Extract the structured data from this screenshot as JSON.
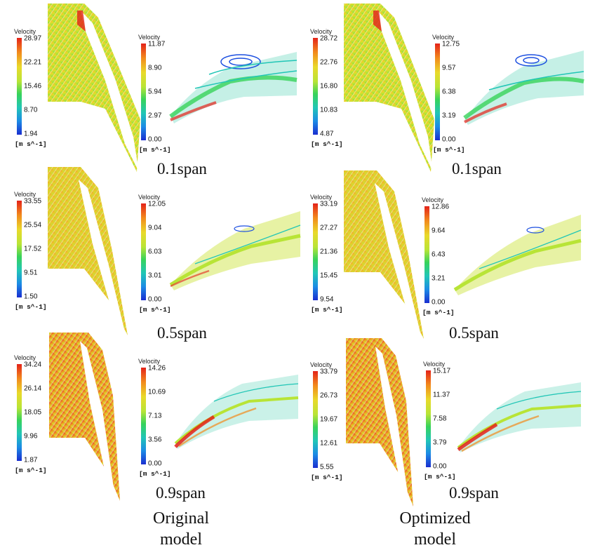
{
  "legend_title": "Velocity",
  "unit": "[m s^-1]",
  "span_labels": [
    "0.1span",
    "0.5span",
    "0.9span"
  ],
  "models": [
    {
      "label_line1": "Original",
      "label_line2": "model",
      "rows": [
        {
          "blade_ticks": [
            "28.97",
            "22.21",
            "15.46",
            "8.70",
            "1.94"
          ],
          "passage_ticks": [
            "11.87",
            "8.90",
            "5.94",
            "2.97",
            "0.00"
          ]
        },
        {
          "blade_ticks": [
            "33.55",
            "25.54",
            "17.52",
            "9.51",
            "1.50"
          ],
          "passage_ticks": [
            "12.05",
            "9.04",
            "6.03",
            "3.01",
            "0.00"
          ]
        },
        {
          "blade_ticks": [
            "34.24",
            "26.14",
            "18.05",
            "9.96",
            "1.87"
          ],
          "passage_ticks": [
            "14.26",
            "10.69",
            "7.13",
            "3.56",
            "0.00"
          ]
        }
      ]
    },
    {
      "label_line1": "Optimized",
      "label_line2": "model",
      "rows": [
        {
          "blade_ticks": [
            "28.72",
            "22.76",
            "16.80",
            "10.83",
            "4.87"
          ],
          "passage_ticks": [
            "12.75",
            "9.57",
            "6.38",
            "3.19",
            "0.00"
          ]
        },
        {
          "blade_ticks": [
            "33.19",
            "27.27",
            "21.36",
            "15.45",
            "9.54"
          ],
          "passage_ticks": [
            "12.86",
            "9.64",
            "6.43",
            "3.21",
            "0.00"
          ]
        },
        {
          "blade_ticks": [
            "33.79",
            "26.73",
            "19.67",
            "12.61",
            "5.55"
          ],
          "passage_ticks": [
            "15.17",
            "11.37",
            "7.58",
            "3.79",
            "0.00"
          ]
        }
      ]
    }
  ],
  "colors": {
    "red": "#e4221a",
    "orange": "#f28a1c",
    "yellow": "#e9d92a",
    "lime": "#b8e436",
    "green": "#37d35a",
    "cyan": "#21c6b6",
    "blue": "#1c8be5",
    "navy": "#1a2ed0"
  }
}
